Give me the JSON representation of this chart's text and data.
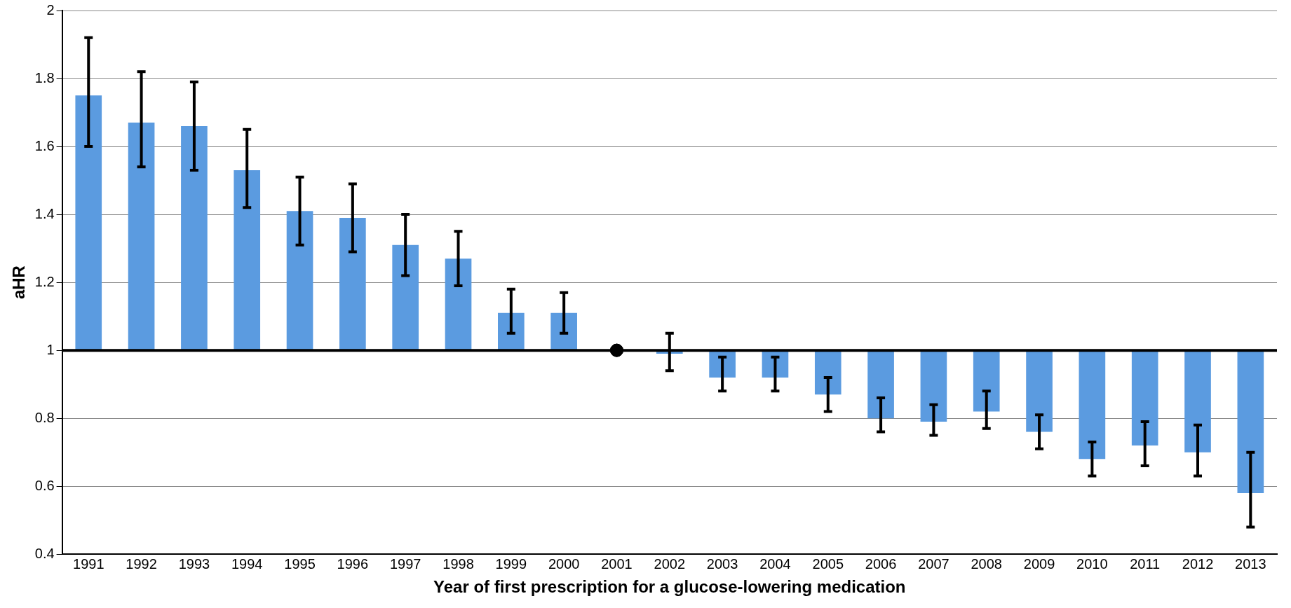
{
  "chart_data": {
    "type": "bar",
    "xlabel": "Year of first prescription for a glucose-lowering medication",
    "ylabel": "aHR",
    "categories": [
      "1991",
      "1992",
      "1993",
      "1994",
      "1995",
      "1996",
      "1997",
      "1998",
      "1999",
      "2000",
      "2001",
      "2002",
      "2003",
      "2004",
      "2005",
      "2006",
      "2007",
      "2008",
      "2009",
      "2010",
      "2011",
      "2012",
      "2013"
    ],
    "series": [
      {
        "color": "#5b9be0",
        "base": [
          1,
          1,
          1,
          1,
          1,
          1,
          1,
          1,
          1,
          1,
          null,
          1,
          1,
          1,
          1,
          1,
          1,
          1,
          1,
          1,
          1,
          1,
          1
        ],
        "values": [
          0.75,
          0.67,
          0.66,
          0.53,
          0.41,
          0.39,
          0.31,
          0.27,
          0.11,
          0.11,
          null,
          -0.01,
          -0.08,
          -0.08,
          -0.13,
          -0.2,
          -0.21,
          -0.18,
          -0.24,
          -0.32,
          -0.28,
          -0.3,
          -0.42
        ],
        "errors": [
          [
            1.6,
            1.92
          ],
          [
            1.54,
            1.82
          ],
          [
            1.53,
            1.79
          ],
          [
            1.42,
            1.65
          ],
          [
            1.31,
            1.51
          ],
          [
            1.29,
            1.49
          ],
          [
            1.22,
            1.4
          ],
          [
            1.19,
            1.35
          ],
          [
            1.05,
            1.18
          ],
          [
            1.05,
            1.17
          ],
          null,
          [
            0.94,
            1.05
          ],
          [
            0.88,
            0.98
          ],
          [
            0.88,
            0.98
          ],
          [
            0.82,
            0.92
          ],
          [
            0.76,
            0.86
          ],
          [
            0.75,
            0.84
          ],
          [
            0.77,
            0.88
          ],
          [
            0.71,
            0.81
          ],
          [
            0.63,
            0.73
          ],
          [
            0.66,
            0.79
          ],
          [
            0.63,
            0.78
          ],
          [
            0.48,
            0.7
          ]
        ]
      },
      {
        "type": "scatter",
        "color": "#000000",
        "marker": "circle",
        "values": [
          null,
          null,
          null,
          null,
          null,
          null,
          null,
          null,
          null,
          null,
          1,
          null,
          null,
          null,
          null,
          null,
          null,
          null,
          null,
          null,
          null,
          null,
          null
        ]
      }
    ],
    "ylim": [
      0.4,
      2
    ],
    "yticks": [
      0.4,
      0.6,
      0.8,
      1,
      1.2,
      1.4,
      1.6,
      1.8,
      2
    ],
    "grid": "y",
    "legend": false,
    "ref_lines": [
      {
        "axis": "y",
        "value": 1,
        "color": "#000000"
      }
    ]
  }
}
